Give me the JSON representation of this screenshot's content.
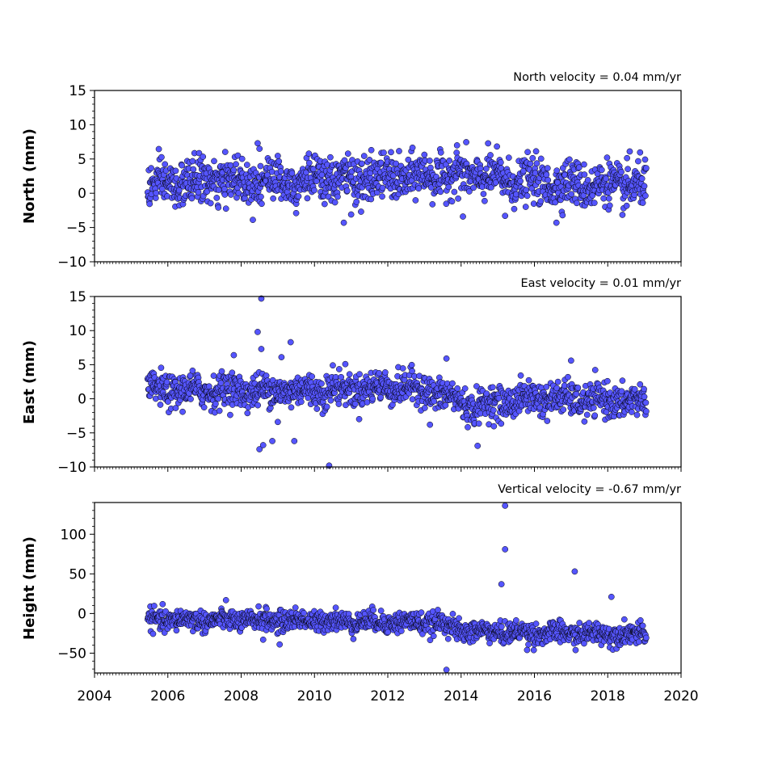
{
  "chart_data": [
    {
      "type": "scatter",
      "velocity_label": "North velocity = 0.04 mm/yr",
      "ylabel": "North (mm)",
      "xlim": [
        2004,
        2020
      ],
      "ylim": [
        -10,
        15
      ],
      "yticks": [
        15,
        10,
        5,
        0,
        -5,
        -10
      ],
      "ytick_labels": [
        "15",
        "10",
        "5",
        "0",
        "−5",
        "−10"
      ],
      "series": [
        {
          "x_range": [
            2005.45,
            2019.05
          ],
          "baseline": [
            [
              2005.45,
              1.0
            ],
            [
              2007.0,
              1.8
            ],
            [
              2010.5,
              2.0
            ],
            [
              2012.0,
              2.2
            ],
            [
              2014.0,
              2.8
            ],
            [
              2016.0,
              1.5
            ],
            [
              2019.05,
              1.0
            ]
          ],
          "scatter": 1.6,
          "outliers": [
            {
              "x": 2008.45,
              "y": 7.3
            },
            {
              "x": 2008.5,
              "y": 6.5
            },
            {
              "x": 2018.6,
              "y": 6.1
            },
            {
              "x": 2011.55,
              "y": 6.3
            },
            {
              "x": 2010.8,
              "y": -4.3
            },
            {
              "x": 2016.6,
              "y": -4.3
            },
            {
              "x": 2011.0,
              "y": -3.1
            },
            {
              "x": 2014.05,
              "y": -3.4
            },
            {
              "x": 2015.2,
              "y": -3.3
            },
            {
              "x": 2009.5,
              "y": -2.9
            }
          ]
        }
      ]
    },
    {
      "type": "scatter",
      "velocity_label": "East velocity = 0.01 mm/yr",
      "ylabel": "East (mm)",
      "xlim": [
        2004,
        2020
      ],
      "ylim": [
        -10,
        15
      ],
      "yticks": [
        15,
        10,
        5,
        0,
        -5,
        -10
      ],
      "ytick_labels": [
        "15",
        "10",
        "5",
        "0",
        "−5",
        "−10"
      ],
      "series": [
        {
          "x_range": [
            2005.45,
            2019.05
          ],
          "baseline": [
            [
              2005.45,
              1.2
            ],
            [
              2010.0,
              1.2
            ],
            [
              2012.5,
              1.8
            ],
            [
              2013.5,
              0.6
            ],
            [
              2014.3,
              -1.2
            ],
            [
              2016.0,
              0.2
            ],
            [
              2017.5,
              -0.3
            ],
            [
              2019.05,
              -0.4
            ]
          ],
          "scatter": 1.2,
          "outliers": [
            {
              "x": 2008.55,
              "y": 14.7
            },
            {
              "x": 2008.45,
              "y": 9.8
            },
            {
              "x": 2009.35,
              "y": 8.3
            },
            {
              "x": 2008.55,
              "y": 7.3
            },
            {
              "x": 2007.8,
              "y": 6.4
            },
            {
              "x": 2009.1,
              "y": 6.1
            },
            {
              "x": 2013.6,
              "y": 5.9
            },
            {
              "x": 2017.0,
              "y": 5.6
            },
            {
              "x": 2010.5,
              "y": 4.9
            },
            {
              "x": 2008.5,
              "y": -7.4
            },
            {
              "x": 2008.6,
              "y": -6.8
            },
            {
              "x": 2008.85,
              "y": -6.2
            },
            {
              "x": 2009.45,
              "y": -6.2
            },
            {
              "x": 2014.45,
              "y": -6.9
            },
            {
              "x": 2010.4,
              "y": -9.8
            },
            {
              "x": 2009.0,
              "y": -3.4
            },
            {
              "x": 2013.15,
              "y": -3.8
            }
          ]
        }
      ]
    },
    {
      "type": "scatter",
      "velocity_label": "Vertical velocity = -0.67 mm/yr",
      "ylabel": "Height (mm)",
      "xlim": [
        2004,
        2020
      ],
      "ylim": [
        -75,
        140
      ],
      "yticks": [
        100,
        50,
        0,
        -50
      ],
      "ytick_labels": [
        "100",
        "50",
        "0",
        "−50"
      ],
      "series": [
        {
          "x_range": [
            2005.45,
            2019.05
          ],
          "baseline": [
            [
              2005.45,
              -8
            ],
            [
              2010.0,
              -9
            ],
            [
              2013.5,
              -12
            ],
            [
              2014.0,
              -22
            ],
            [
              2016.5,
              -25
            ],
            [
              2019.05,
              -26
            ]
          ],
          "scatter": 6.5,
          "outliers": [
            {
              "x": 2015.2,
              "y": 136
            },
            {
              "x": 2015.2,
              "y": 81
            },
            {
              "x": 2015.1,
              "y": 37
            },
            {
              "x": 2017.1,
              "y": 53
            },
            {
              "x": 2018.1,
              "y": 21
            },
            {
              "x": 2013.6,
              "y": -71
            },
            {
              "x": 2015.8,
              "y": -46
            },
            {
              "x": 2008.6,
              "y": -33
            },
            {
              "x": 2009.05,
              "y": -39
            }
          ]
        }
      ]
    }
  ],
  "xaxis": {
    "ticks": [
      2004,
      2006,
      2008,
      2010,
      2012,
      2014,
      2016,
      2018,
      2020
    ],
    "tick_labels": [
      "2004",
      "2006",
      "2008",
      "2010",
      "2012",
      "2014",
      "2016",
      "2018",
      "2020"
    ]
  },
  "colors": {
    "marker_fill": "#5555ff",
    "marker_edge": "#000000",
    "axes": "#000000"
  }
}
